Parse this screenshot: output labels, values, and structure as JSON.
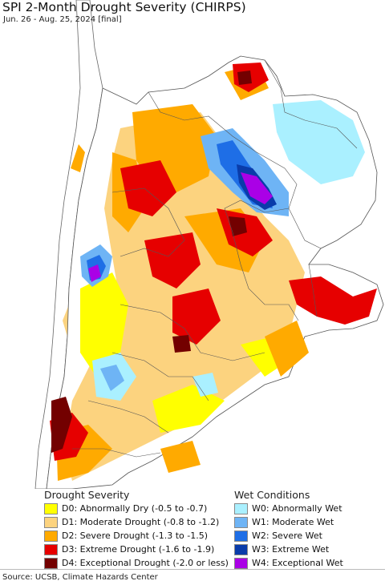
{
  "header": {
    "title": "SPI 2-Month Drought Severity (CHIRPS)",
    "subtitle": "Jun. 26 - Aug. 25, 2024 [final]"
  },
  "legend": {
    "drought_heading": "Drought Severity",
    "wet_heading": "Wet Conditions",
    "drought_items": [
      {
        "label": "D0: Abnormally Dry (-0.5 to -0.7)",
        "color": "#ffff00"
      },
      {
        "label": "D1: Moderate Drought (-0.8 to -1.2)",
        "color": "#fcd37f"
      },
      {
        "label": "D2: Severe Drought (-1.3 to -1.5)",
        "color": "#ffaa00"
      },
      {
        "label": "D3: Extreme Drought (-1.6 to -1.9)",
        "color": "#e60000"
      },
      {
        "label": "D4: Exceptional Drought (-2.0 or less)",
        "color": "#730000"
      }
    ],
    "wet_items": [
      {
        "label": "W0: Abnormally Wet",
        "color": "#aaf0ff"
      },
      {
        "label": "W1: Moderate Wet",
        "color": "#6eb4f5"
      },
      {
        "label": "W2: Severe Wet",
        "color": "#1e6ee6"
      },
      {
        "label": "W3: Extreme Wet",
        "color": "#0a3caa"
      },
      {
        "label": "W4: Exceptional Wet",
        "color": "#aa00e6"
      }
    ]
  },
  "footer": {
    "source": "Source: UCSB, Climate Hazards Center"
  },
  "colors": {
    "ocean": "#ffffff",
    "no_drought": "#ffffff",
    "border": "#555555"
  }
}
